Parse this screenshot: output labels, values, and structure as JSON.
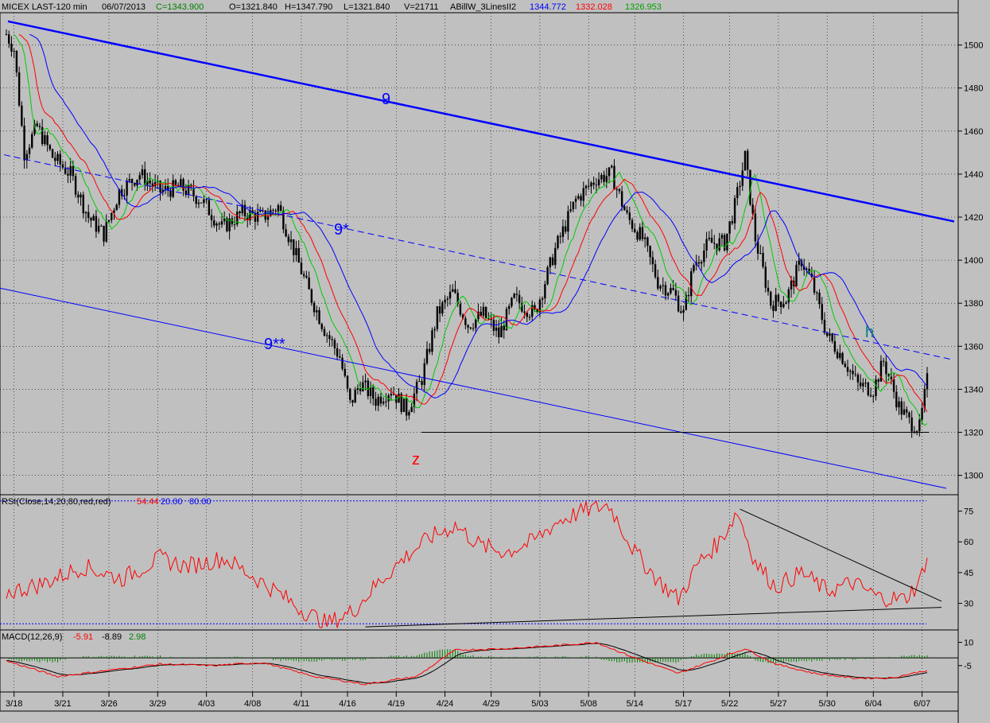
{
  "header": {
    "symbol": "MICEX LAST-120 min",
    "date": "06/07/2013",
    "close": "C=1343.900",
    "open": "O=1321.840",
    "high": "H=1347.790",
    "low": "L=1321.840",
    "volume": "V=21711",
    "study_name": "ABillW_3LinesII2",
    "study_values": [
      "1344.772",
      "1332.028",
      "1326.953"
    ],
    "colors": {
      "blue": "#0000ff",
      "red": "#ff0000",
      "green": "#00a000",
      "dark_green": "#008000"
    }
  },
  "rsi_header": {
    "label": "RSI(Close,14,20,80,red,red)",
    "value": "54.44",
    "low": "20.00",
    "high": "80.00"
  },
  "macd_header": {
    "label": "MACD(12,26,9)",
    "macd": "-5.91",
    "signal": "-8.89",
    "hist": "2.98"
  },
  "annotations": {
    "top_channel": "9",
    "mid_channel": "9*",
    "low_channel": "9**",
    "swing_low": "z",
    "swing_h": "h"
  },
  "chart_data": {
    "type": "candlestick",
    "x_ticks": [
      "3/18",
      "3/21",
      "3/26",
      "3/29",
      "4/03",
      "4/08",
      "4/11",
      "4/16",
      "4/19",
      "4/24",
      "4/29",
      "5/03",
      "5/08",
      "5/14",
      "5/17",
      "5/22",
      "5/27",
      "5/30",
      "6/04",
      "6/07"
    ],
    "price_axis": {
      "ylim": [
        1291,
        1515
      ],
      "ticks": [
        1300,
        1320,
        1340,
        1360,
        1380,
        1400,
        1420,
        1440,
        1460,
        1480,
        1500
      ]
    },
    "rsi_axis": {
      "ylim": [
        17,
        83
      ],
      "ticks": [
        30,
        45,
        60,
        75
      ],
      "bands": [
        20,
        80
      ]
    },
    "macd_axis": {
      "ylim": [
        -22,
        18
      ],
      "ticks": [
        -5,
        10
      ]
    },
    "price_anchors": [
      [
        0,
        1505
      ],
      [
        3,
        1498
      ],
      [
        7,
        1450
      ],
      [
        12,
        1462
      ],
      [
        18,
        1448
      ],
      [
        25,
        1440
      ],
      [
        32,
        1420
      ],
      [
        38,
        1412
      ],
      [
        44,
        1432
      ],
      [
        52,
        1440
      ],
      [
        60,
        1432
      ],
      [
        68,
        1434
      ],
      [
        76,
        1428
      ],
      [
        84,
        1415
      ],
      [
        92,
        1422
      ],
      [
        100,
        1420
      ],
      [
        106,
        1425
      ],
      [
        112,
        1405
      ],
      [
        118,
        1385
      ],
      [
        124,
        1368
      ],
      [
        130,
        1355
      ],
      [
        134,
        1333
      ],
      [
        138,
        1343
      ],
      [
        144,
        1335
      ],
      [
        150,
        1340
      ],
      [
        156,
        1330
      ],
      [
        162,
        1345
      ],
      [
        168,
        1375
      ],
      [
        174,
        1385
      ],
      [
        180,
        1370
      ],
      [
        186,
        1375
      ],
      [
        192,
        1365
      ],
      [
        198,
        1382
      ],
      [
        206,
        1375
      ],
      [
        214,
        1405
      ],
      [
        222,
        1428
      ],
      [
        230,
        1438
      ],
      [
        236,
        1440
      ],
      [
        242,
        1420
      ],
      [
        248,
        1410
      ],
      [
        254,
        1390
      ],
      [
        260,
        1385
      ],
      [
        264,
        1375
      ],
      [
        268,
        1398
      ],
      [
        274,
        1408
      ],
      [
        280,
        1408
      ],
      [
        284,
        1425
      ],
      [
        288,
        1448
      ],
      [
        292,
        1410
      ],
      [
        298,
        1380
      ],
      [
        304,
        1382
      ],
      [
        310,
        1400
      ],
      [
        314,
        1390
      ],
      [
        320,
        1365
      ],
      [
        326,
        1355
      ],
      [
        332,
        1342
      ],
      [
        338,
        1340
      ],
      [
        342,
        1353
      ],
      [
        348,
        1332
      ],
      [
        352,
        1325
      ],
      [
        356,
        1322
      ],
      [
        359,
        1344
      ]
    ],
    "candle_count": 360,
    "lines": {
      "channel_9": {
        "x": [
          "3/18",
          "6/07"
        ],
        "y": [
          1511,
          1418
        ]
      },
      "channel_9_star": {
        "x": [
          "3/18",
          "6/07"
        ],
        "y": [
          1449,
          1354
        ]
      },
      "channel_9_2star": {
        "x": [
          "3/18",
          "6/07"
        ],
        "y": [
          1387,
          1294
        ]
      },
      "support": {
        "x": [
          "4/22",
          "6/07"
        ],
        "y": [
          1320,
          1320
        ]
      }
    },
    "rsi_anchors": [
      [
        0,
        35
      ],
      [
        15,
        40
      ],
      [
        30,
        48
      ],
      [
        45,
        42
      ],
      [
        60,
        52
      ],
      [
        70,
        48
      ],
      [
        85,
        52
      ],
      [
        95,
        44
      ],
      [
        105,
        36
      ],
      [
        115,
        27
      ],
      [
        125,
        20
      ],
      [
        135,
        26
      ],
      [
        145,
        40
      ],
      [
        155,
        52
      ],
      [
        165,
        62
      ],
      [
        175,
        68
      ],
      [
        185,
        58
      ],
      [
        195,
        55
      ],
      [
        205,
        60
      ],
      [
        215,
        70
      ],
      [
        225,
        75
      ],
      [
        235,
        78
      ],
      [
        245,
        55
      ],
      [
        255,
        40
      ],
      [
        262,
        32
      ],
      [
        270,
        50
      ],
      [
        278,
        60
      ],
      [
        285,
        75
      ],
      [
        292,
        50
      ],
      [
        300,
        38
      ],
      [
        310,
        45
      ],
      [
        320,
        36
      ],
      [
        330,
        40
      ],
      [
        340,
        33
      ],
      [
        350,
        32
      ],
      [
        356,
        40
      ],
      [
        359,
        54
      ]
    ],
    "rsi_trendlines": [
      {
        "from": [
          286,
          76
        ],
        "to": [
          359,
          31
        ]
      },
      {
        "from": [
          140,
          18.5
        ],
        "to": [
          359,
          28
        ]
      }
    ],
    "macd_anchors": [
      [
        0,
        -2
      ],
      [
        20,
        -12
      ],
      [
        40,
        -8
      ],
      [
        60,
        -4
      ],
      [
        80,
        -5
      ],
      [
        100,
        -3
      ],
      [
        120,
        -12
      ],
      [
        140,
        -17
      ],
      [
        160,
        -12
      ],
      [
        175,
        5
      ],
      [
        195,
        6
      ],
      [
        215,
        8
      ],
      [
        230,
        10
      ],
      [
        245,
        0
      ],
      [
        262,
        -10
      ],
      [
        275,
        -2
      ],
      [
        288,
        6
      ],
      [
        300,
        -4
      ],
      [
        315,
        -10
      ],
      [
        330,
        -13
      ],
      [
        345,
        -13
      ],
      [
        359,
        -8
      ]
    ]
  }
}
